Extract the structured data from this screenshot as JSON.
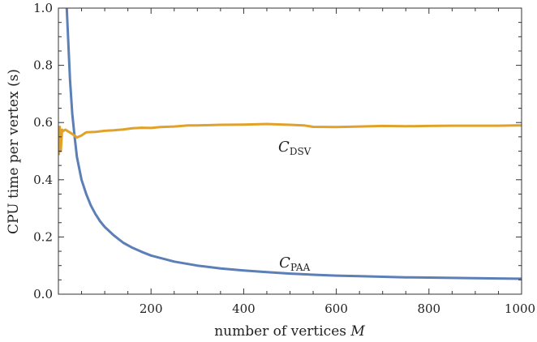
{
  "chart_data": {
    "type": "line",
    "xlabel": "number of vertices ",
    "xlabel_var": "M",
    "ylabel": "CPU time per vertex (s)",
    "xlim": [
      0,
      1000
    ],
    "ylim": [
      0.0,
      1.0
    ],
    "x_ticks": [
      "200",
      "400",
      "600",
      "800",
      "1000"
    ],
    "y_ticks": [
      "0.0",
      "0.2",
      "0.4",
      "0.6",
      "0.8",
      "1.0"
    ],
    "grid": false,
    "series": [
      {
        "name": "C",
        "subscript": "PAA",
        "color": "#5b7fb6",
        "label_at": [
          510,
          0.11
        ],
        "x": [
          18,
          20,
          25,
          30,
          35,
          40,
          50,
          60,
          70,
          80,
          90,
          100,
          120,
          140,
          160,
          180,
          200,
          250,
          300,
          350,
          400,
          450,
          500,
          550,
          600,
          650,
          700,
          750,
          800,
          850,
          900,
          950,
          1000
        ],
        "y": [
          1.0,
          0.93,
          0.75,
          0.63,
          0.55,
          0.48,
          0.4,
          0.35,
          0.31,
          0.28,
          0.255,
          0.235,
          0.205,
          0.18,
          0.162,
          0.148,
          0.135,
          0.114,
          0.1,
          0.09,
          0.083,
          0.077,
          0.072,
          0.068,
          0.065,
          0.063,
          0.061,
          0.059,
          0.058,
          0.057,
          0.056,
          0.055,
          0.054
        ]
      },
      {
        "name": "C",
        "subscript": "DSV",
        "color": "#e0a22a",
        "label_at": [
          510,
          0.515
        ],
        "x": [
          1,
          3,
          5,
          8,
          10,
          15,
          20,
          30,
          40,
          50,
          60,
          80,
          100,
          120,
          140,
          160,
          180,
          200,
          220,
          250,
          280,
          300,
          350,
          400,
          450,
          500,
          530,
          550,
          600,
          650,
          700,
          750,
          800,
          850,
          900,
          950,
          1000
        ],
        "y": [
          0.49,
          0.585,
          0.5,
          0.575,
          0.57,
          0.575,
          0.57,
          0.56,
          0.548,
          0.555,
          0.566,
          0.567,
          0.571,
          0.573,
          0.576,
          0.58,
          0.582,
          0.581,
          0.584,
          0.586,
          0.59,
          0.59,
          0.592,
          0.593,
          0.595,
          0.592,
          0.59,
          0.585,
          0.584,
          0.586,
          0.588,
          0.587,
          0.588,
          0.589,
          0.589,
          0.589,
          0.59
        ]
      }
    ]
  }
}
